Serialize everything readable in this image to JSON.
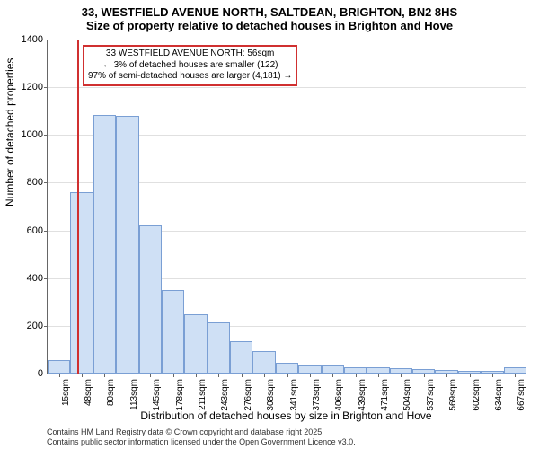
{
  "title_line1": "33, WESTFIELD AVENUE NORTH, SALTDEAN, BRIGHTON, BN2 8HS",
  "title_line2": "Size of property relative to detached houses in Brighton and Hove",
  "x_axis_label": "Distribution of detached houses by size in Brighton and Hove",
  "y_axis_label": "Number of detached properties",
  "footer1": "Contains HM Land Registry data © Crown copyright and database right 2025.",
  "footer2": "Contains public sector information licensed under the Open Government Licence v3.0.",
  "annotation": {
    "line1": "33 WESTFIELD AVENUE NORTH: 56sqm",
    "line2": "← 3% of detached houses are smaller (122)",
    "line3": "97% of semi-detached houses are larger (4,181) →",
    "border_color": "#d03030"
  },
  "marker": {
    "x_index": 1.3,
    "color": "#d03030"
  },
  "chart": {
    "type": "histogram",
    "ylim": [
      0,
      1400
    ],
    "ytick_step": 200,
    "background_color": "#ffffff",
    "grid_color": "#e0e0e0",
    "bar_fill": "#cfe0f5",
    "bar_border": "#7a9fd4",
    "categories": [
      "15sqm",
      "48sqm",
      "80sqm",
      "113sqm",
      "145sqm",
      "178sqm",
      "211sqm",
      "243sqm",
      "276sqm",
      "308sqm",
      "341sqm",
      "373sqm",
      "406sqm",
      "439sqm",
      "471sqm",
      "504sqm",
      "537sqm",
      "569sqm",
      "602sqm",
      "634sqm",
      "667sqm"
    ],
    "values": [
      55,
      760,
      1085,
      1080,
      620,
      350,
      250,
      215,
      135,
      95,
      45,
      35,
      35,
      28,
      25,
      22,
      18,
      15,
      12,
      10,
      25
    ]
  }
}
